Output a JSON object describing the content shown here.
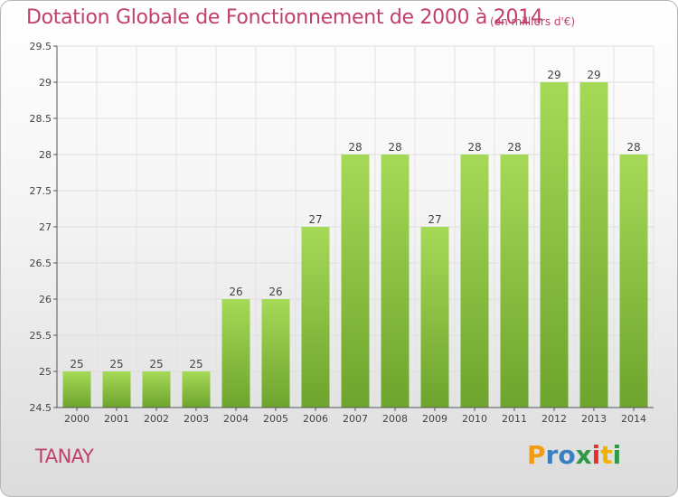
{
  "title": "Dotation Globale de Fonctionnement de 2000 à 2014",
  "unit_note": "(en milliers d'€)",
  "commune": "TANAY",
  "logo": {
    "letters": [
      "P",
      "r",
      "o",
      "x",
      "i",
      "t",
      "i"
    ],
    "colors": [
      "#f39c12",
      "#3a7fc1",
      "#3a7fc1",
      "#2e9a48",
      "#e2332e",
      "#f0b400",
      "#2e9a48"
    ]
  },
  "colors": {
    "bar": "#8cc63f",
    "bar_light": "#a6d957",
    "bar_dark": "#6da42d",
    "text": "#c0406a"
  },
  "chart_data": {
    "type": "bar",
    "title": "Dotation Globale de Fonctionnement de 2000 à 2014",
    "subtitle": "(en milliers d'€)",
    "categories": [
      "2000",
      "2001",
      "2002",
      "2003",
      "2004",
      "2005",
      "2006",
      "2007",
      "2008",
      "2009",
      "2010",
      "2011",
      "2012",
      "2013",
      "2014"
    ],
    "values": [
      25,
      25,
      25,
      25,
      26,
      26,
      27,
      28,
      28,
      27,
      28,
      28,
      29,
      29,
      28
    ],
    "data_labels": [
      "25",
      "25",
      "25",
      "25",
      "26",
      "26",
      "27",
      "28",
      "28",
      "27",
      "28",
      "28",
      "29",
      "29",
      "28"
    ],
    "ylim": [
      24.5,
      29.5
    ],
    "yticks": [
      24.5,
      25,
      25.5,
      26,
      26.5,
      27,
      27.5,
      28,
      28.5,
      29,
      29.5
    ],
    "ytick_labels": [
      "24.5",
      "25",
      "25.5",
      "26",
      "26.5",
      "27",
      "27.5",
      "28",
      "28.5",
      "29",
      "29.5"
    ],
    "grid": true,
    "xlabel": "",
    "ylabel": ""
  }
}
